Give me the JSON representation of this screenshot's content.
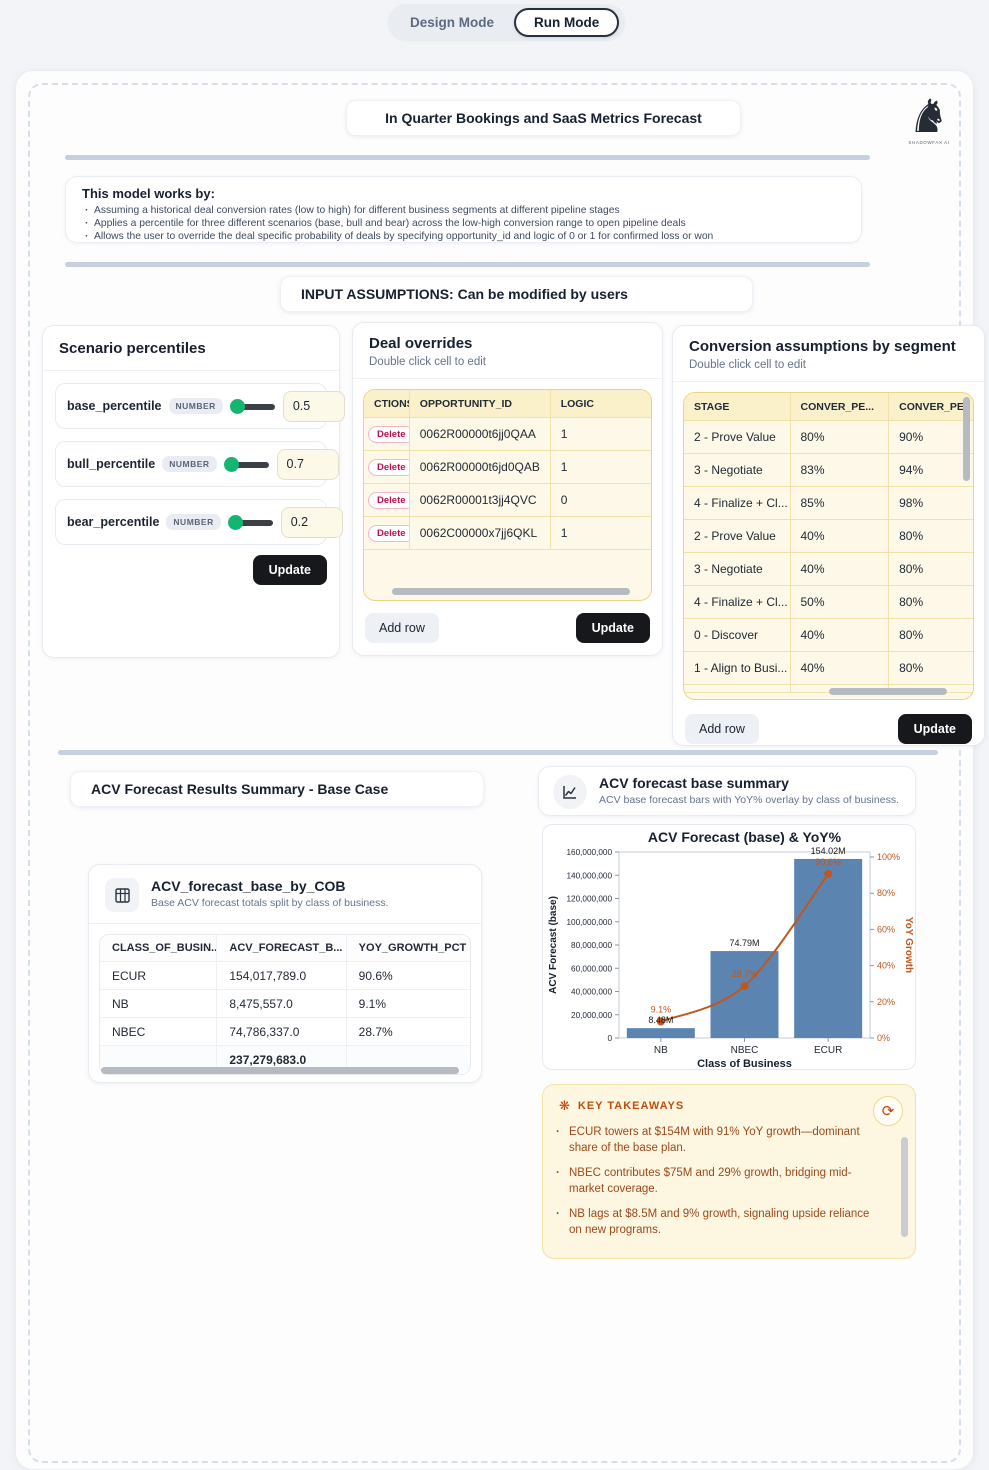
{
  "mode_toggle": {
    "design_label": "Design Mode",
    "run_label": "Run Mode"
  },
  "header": {
    "title": "In Quarter Bookings and SaaS Metrics Forecast",
    "logo_text": "SHADOWFAX AI"
  },
  "model_info": {
    "heading": "This model works by:",
    "bullets": [
      "Assuming a historical deal conversion rates (low to high) for different business segments at different pipeline stages",
      "Applies a percentile for three different scenarios (base, bull and bear) across the low-high conversion range to open pipeline deals",
      "Allows the user to override the deal specific probability of deals by specifying opportunity_id and logic of 0 or 1 for confirmed loss or won"
    ]
  },
  "input_assumptions_heading": "INPUT ASSUMPTIONS: Can be modified by users",
  "scenario_percentiles": {
    "title": "Scenario percentiles",
    "fields": [
      {
        "name": "base_percentile",
        "type": "NUMBER",
        "value": "0.5"
      },
      {
        "name": "bull_percentile",
        "type": "NUMBER",
        "value": "0.7"
      },
      {
        "name": "bear_percentile",
        "type": "NUMBER",
        "value": "0.2"
      }
    ],
    "update_label": "Update"
  },
  "deal_overrides": {
    "title": "Deal overrides",
    "subtitle": "Double click cell to edit",
    "columns": {
      "actions": "CTIONS",
      "opportunity_id": "OPPORTUNITY_ID",
      "logic": "LOGIC"
    },
    "delete_label": "Delete",
    "rows": [
      {
        "opportunity_id": "0062R00000t6jj0QAA",
        "logic": "1"
      },
      {
        "opportunity_id": "0062R00000t6jd0QAB",
        "logic": "1"
      },
      {
        "opportunity_id": "0062R00001t3jj4QVC",
        "logic": "0"
      },
      {
        "opportunity_id": "0062C00000x7jj6QKL",
        "logic": "1"
      }
    ],
    "add_row_label": "Add row",
    "update_label": "Update"
  },
  "conversion_assumptions": {
    "title": "Conversion assumptions by segment",
    "subtitle": "Double click cell to edit",
    "columns": {
      "stage": "STAGE",
      "conv_low": "CONVER_PE...",
      "conv_high": "CONVER_PE"
    },
    "rows": [
      {
        "stage": "2 - Prove Value",
        "low": "80%",
        "high": "90%"
      },
      {
        "stage": "3 - Negotiate",
        "low": "83%",
        "high": "94%"
      },
      {
        "stage": "4 - Finalize + Cl...",
        "low": "85%",
        "high": "98%"
      },
      {
        "stage": "2 - Prove Value",
        "low": "40%",
        "high": "80%"
      },
      {
        "stage": "3 - Negotiate",
        "low": "40%",
        "high": "80%"
      },
      {
        "stage": "4 - Finalize + Cl...",
        "low": "50%",
        "high": "80%"
      },
      {
        "stage": "0 - Discover",
        "low": "40%",
        "high": "80%"
      },
      {
        "stage": "1 - Align to Busi...",
        "low": "40%",
        "high": "80%"
      }
    ],
    "add_row_label": "Add row",
    "update_label": "Update"
  },
  "results_summary_heading": "ACV Forecast Results Summary - Base Case",
  "cob_table": {
    "title": "ACV_forecast_base_by_COB",
    "subtitle": "Base ACV forecast totals split by class of business.",
    "columns": {
      "cob": "CLASS_OF_BUSIN...",
      "acv": "ACV_FORECAST_B...",
      "yoy": "YOY_GROWTH_PCT"
    },
    "rows": [
      {
        "cob": "ECUR",
        "acv": "154,017,789.0",
        "yoy": "90.6%"
      },
      {
        "cob": "NB",
        "acv": "8,475,557.0",
        "yoy": "9.1%"
      },
      {
        "cob": "NBEC",
        "acv": "74,786,337.0",
        "yoy": "28.7%"
      }
    ],
    "total_acv": "237,279,683.0"
  },
  "chart_panel": {
    "title": "ACV forecast base summary",
    "subtitle": "ACV base forecast bars with YoY% overlay by class of business."
  },
  "chart_data": {
    "type": "bar",
    "title": "ACV Forecast (base) & YoY%",
    "categories": [
      "NB",
      "NBEC",
      "ECUR"
    ],
    "series": [
      {
        "name": "ACV Forecast (base)",
        "type": "bar",
        "values": [
          8475557,
          74786337,
          154017789
        ],
        "point_labels": [
          "8.48M",
          "74.79M",
          "154.02M"
        ],
        "color": "#5b84b1"
      },
      {
        "name": "YoY Growth",
        "type": "line",
        "axis": "right",
        "values": [
          9.1,
          28.7,
          90.6
        ],
        "point_labels": [
          "9.1%",
          "28.7%",
          "90.6%"
        ],
        "color": "#c0571c"
      }
    ],
    "xlabel": "Class of Business",
    "ylabel_left": "ACV Forecast (base)",
    "ylabel_right": "YoY Growth",
    "ylim_left": [
      0,
      160000000
    ],
    "left_tick_labels": [
      "0",
      "20,000,000",
      "40,000,000",
      "60,000,000",
      "80,000,000",
      "100,000,000",
      "120,000,000",
      "140,000,000",
      "160,000,000"
    ],
    "ylim_right": [
      0,
      100
    ],
    "right_tick_labels": [
      "0%",
      "20%",
      "40%",
      "60%",
      "80%",
      "100%"
    ],
    "grid": false,
    "legend_position": "none"
  },
  "key_takeaways": {
    "title": "KEY TAKEAWAYS",
    "bullets": [
      "ECUR towers at $154M with 91% YoY growth—dominant share of the base plan.",
      "NBEC contributes $75M and 29% growth, bridging mid-market coverage.",
      "NB lags at $8.5M and 9% growth, signaling upside reliance on new programs."
    ]
  },
  "colors": {
    "bar_fill": "#5b84b1",
    "line_color": "#c0571c",
    "accent_black": "#17181b",
    "table_header_yellow": "#faf0ca",
    "table_row_cream": "#fdf8e7",
    "takeaways_bg": "#fdf6e0",
    "delete_red": "#c0104c",
    "slider_green": "#14b571"
  }
}
